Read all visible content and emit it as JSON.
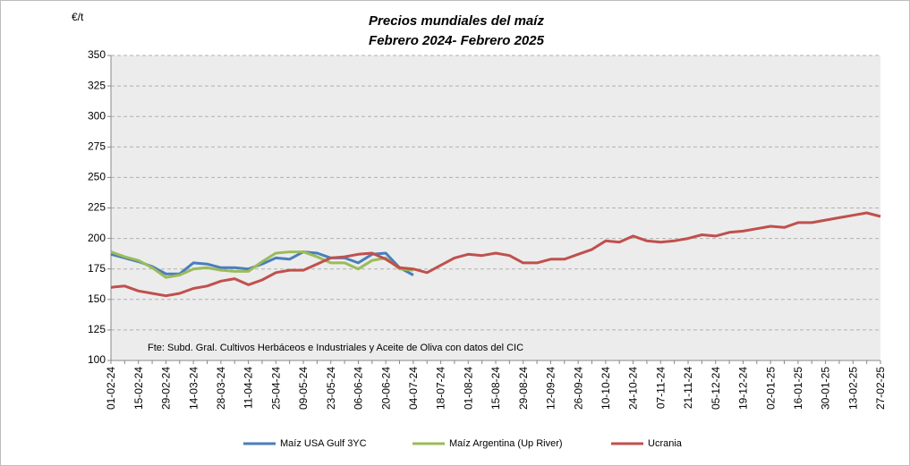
{
  "chart_data": {
    "type": "line",
    "title": "Precios mundiales del maíz",
    "subtitle": "Febrero 2024- Febrero 2025",
    "ylabel": "€/t",
    "note": "Fte: Subd. Gral. Cultivos Herbáceos e Industriales y Aceite de Oliva con datos del CIC",
    "categories": [
      "01-02-24",
      null,
      "15-02-24",
      null,
      "29-02-24",
      null,
      "14-03-24",
      null,
      "28-03-24",
      null,
      "11-04-24",
      null,
      "25-04-24",
      null,
      "09-05-24",
      null,
      "23-05-24",
      null,
      "06-06-24",
      null,
      "20-06-24",
      null,
      "04-07-24",
      null,
      "18-07-24",
      null,
      "01-08-24",
      null,
      "15-08-24",
      null,
      "29-08-24",
      null,
      "12-09-24",
      null,
      "26-09-24",
      null,
      "10-10-24",
      null,
      "24-10-24",
      null,
      "07-11-24",
      null,
      "21-11-24",
      null,
      "05-12-24",
      null,
      "19-12-24",
      null,
      "02-01-25",
      null,
      "16-01-25",
      null,
      "30-01-25",
      null,
      "13-02-25",
      null,
      "27-02-25"
    ],
    "series": [
      {
        "name": "Maíz USA Gulf 3YC",
        "color": "#4a7ebb",
        "values": [
          187,
          184,
          181,
          177,
          171,
          171,
          180,
          179,
          176,
          176,
          175,
          179,
          184,
          183,
          189,
          188,
          184,
          184,
          180,
          187,
          188,
          176,
          170,
          null,
          null,
          null,
          null,
          null,
          null,
          null,
          null,
          null,
          null,
          null,
          null,
          null,
          null,
          null,
          null,
          null,
          null,
          null,
          null,
          null,
          null,
          null,
          null,
          null,
          null,
          null,
          null,
          null,
          null,
          null,
          null,
          null,
          null
        ]
      },
      {
        "name": "Maíz Argentina (Up River)",
        "color": "#9bbb59",
        "values": [
          189,
          185,
          182,
          176,
          168,
          170,
          175,
          176,
          174,
          173,
          173,
          181,
          188,
          189,
          189,
          185,
          180,
          180,
          175,
          182,
          184,
          175,
          174,
          null,
          null,
          null,
          null,
          null,
          null,
          null,
          null,
          null,
          null,
          null,
          null,
          null,
          null,
          null,
          null,
          null,
          null,
          null,
          null,
          null,
          null,
          null,
          null,
          null,
          null,
          null,
          null,
          null,
          null,
          null,
          null,
          null,
          null
        ]
      },
      {
        "name": "Ucrania",
        "color": "#c0504d",
        "values": [
          160,
          161,
          157,
          155,
          153,
          155,
          159,
          161,
          165,
          167,
          162,
          166,
          172,
          174,
          174,
          179,
          184,
          185,
          187,
          188,
          183,
          176,
          175,
          172,
          178,
          184,
          187,
          186,
          188,
          186,
          180,
          180,
          183,
          183,
          187,
          191,
          198,
          197,
          202,
          198,
          197,
          198,
          200,
          203,
          202,
          205,
          206,
          208,
          210,
          209,
          213,
          213,
          215,
          217,
          219,
          221,
          218
        ]
      }
    ],
    "ylim": [
      100,
      350
    ],
    "yticks": [
      100,
      125,
      150,
      175,
      200,
      225,
      250,
      275,
      300,
      325,
      350
    ],
    "grid": true
  }
}
